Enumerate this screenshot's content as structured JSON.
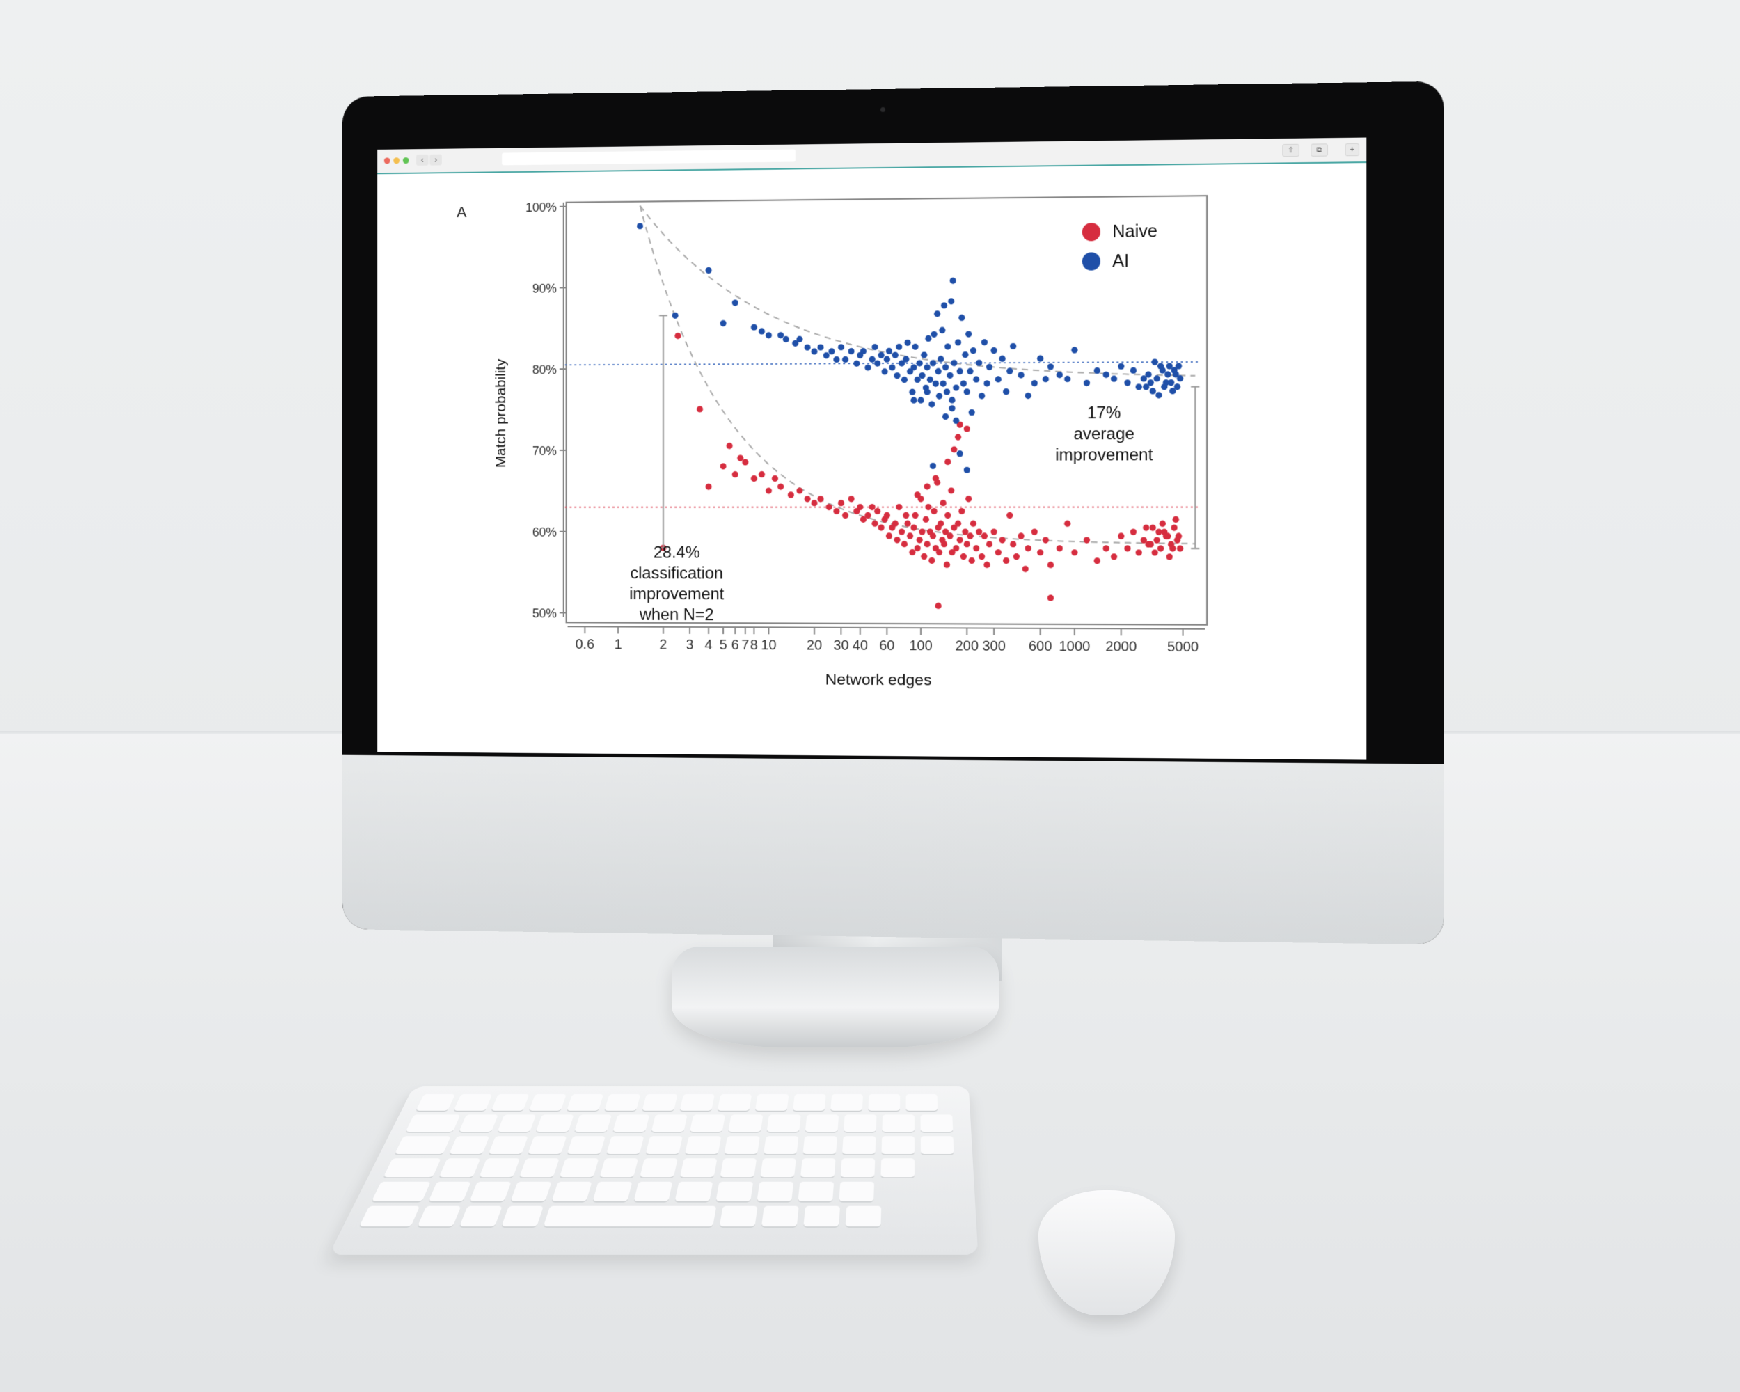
{
  "browser": {
    "back_icon": "chevron-left-icon",
    "forward_icon": "chevron-right-icon",
    "share_icon": "share-icon",
    "tabs_icon": "tabs-icon",
    "new_tab_icon": "plus-icon",
    "traffic_colors": [
      "#ec6a5e",
      "#f4bf4f",
      "#61c454"
    ]
  },
  "panel_label": "A",
  "legend": {
    "items": [
      {
        "label": "Naive",
        "color": "#d62d3f"
      },
      {
        "label": "AI",
        "color": "#1f4fa8"
      }
    ]
  },
  "annotations": {
    "left": [
      "28.4%",
      "classification",
      "improvement",
      "when N=2"
    ],
    "right": [
      "17%",
      "average",
      "improvement"
    ]
  },
  "chart_data": {
    "type": "scatter",
    "title": "",
    "xlabel": "Network edges",
    "ylabel": "Match probability",
    "x_scale": "log",
    "xlim": [
      0.5,
      6500
    ],
    "ylim": [
      50,
      100
    ],
    "x_ticks": [
      0.6,
      1,
      2,
      3,
      4,
      5,
      6,
      7,
      8,
      10,
      20,
      30,
      40,
      60,
      100,
      200,
      300,
      600,
      1000,
      2000,
      5000
    ],
    "x_tick_labels": [
      "0.6",
      "1",
      "2",
      "3",
      "4",
      "5",
      "6",
      "7",
      "8",
      "10",
      "20",
      "30",
      "40",
      "60",
      "100",
      "200",
      "300",
      "600",
      "1000",
      "2000",
      "5000"
    ],
    "y_ticks": [
      50,
      60,
      70,
      80,
      90,
      100
    ],
    "y_tick_labels": [
      "50%",
      "60%",
      "70%",
      "80%",
      "90%",
      "100%"
    ],
    "grid": false,
    "legend_position": "top-right",
    "series": [
      {
        "name": "Naive",
        "color": "#d62d3f",
        "points": [
          [
            2,
            58
          ],
          [
            2.5,
            84
          ],
          [
            3.5,
            75
          ],
          [
            4,
            65.5
          ],
          [
            5,
            68
          ],
          [
            5.5,
            70.5
          ],
          [
            6,
            67
          ],
          [
            6.5,
            69
          ],
          [
            7,
            68.5
          ],
          [
            8,
            66.5
          ],
          [
            9,
            67
          ],
          [
            10,
            65
          ],
          [
            11,
            66.5
          ],
          [
            12,
            65.5
          ],
          [
            14,
            64.5
          ],
          [
            16,
            65
          ],
          [
            18,
            64
          ],
          [
            20,
            63.5
          ],
          [
            22,
            64
          ],
          [
            25,
            63
          ],
          [
            28,
            62.5
          ],
          [
            30,
            63.5
          ],
          [
            32,
            62
          ],
          [
            35,
            64
          ],
          [
            38,
            62.5
          ],
          [
            40,
            63
          ],
          [
            42,
            61.5
          ],
          [
            45,
            62
          ],
          [
            48,
            63
          ],
          [
            50,
            61
          ],
          [
            52,
            62.5
          ],
          [
            55,
            60.5
          ],
          [
            58,
            61.5
          ],
          [
            60,
            62
          ],
          [
            62,
            59.5
          ],
          [
            65,
            60.5
          ],
          [
            68,
            61
          ],
          [
            70,
            59
          ],
          [
            72,
            63
          ],
          [
            75,
            60
          ],
          [
            78,
            58.5
          ],
          [
            80,
            62
          ],
          [
            82,
            61
          ],
          [
            85,
            59.5
          ],
          [
            88,
            57.5
          ],
          [
            90,
            60.5
          ],
          [
            92,
            62
          ],
          [
            95,
            58
          ],
          [
            98,
            59
          ],
          [
            100,
            64
          ],
          [
            102,
            60
          ],
          [
            105,
            57
          ],
          [
            108,
            61.5
          ],
          [
            110,
            58.5
          ],
          [
            112,
            63
          ],
          [
            115,
            60
          ],
          [
            118,
            56.5
          ],
          [
            120,
            59.5
          ],
          [
            122,
            62.5
          ],
          [
            125,
            58
          ],
          [
            128,
            66
          ],
          [
            130,
            60.5
          ],
          [
            132,
            57.5
          ],
          [
            135,
            61
          ],
          [
            138,
            59
          ],
          [
            140,
            63.5
          ],
          [
            142,
            58.5
          ],
          [
            145,
            60
          ],
          [
            148,
            56
          ],
          [
            150,
            62
          ],
          [
            155,
            59.5
          ],
          [
            158,
            65
          ],
          [
            160,
            57.5
          ],
          [
            165,
            60.5
          ],
          [
            170,
            58
          ],
          [
            175,
            61
          ],
          [
            180,
            59
          ],
          [
            185,
            62.5
          ],
          [
            190,
            57
          ],
          [
            195,
            60
          ],
          [
            200,
            58.5
          ],
          [
            205,
            64
          ],
          [
            210,
            59.5
          ],
          [
            215,
            56.5
          ],
          [
            220,
            61
          ],
          [
            230,
            58
          ],
          [
            240,
            60
          ],
          [
            250,
            57
          ],
          [
            260,
            59.5
          ],
          [
            270,
            56
          ],
          [
            280,
            58.5
          ],
          [
            300,
            60
          ],
          [
            320,
            57.5
          ],
          [
            340,
            59
          ],
          [
            360,
            56.5
          ],
          [
            380,
            62
          ],
          [
            400,
            58.5
          ],
          [
            420,
            57
          ],
          [
            450,
            59.5
          ],
          [
            480,
            55.5
          ],
          [
            500,
            58
          ],
          [
            550,
            60
          ],
          [
            600,
            57.5
          ],
          [
            650,
            59
          ],
          [
            700,
            56
          ],
          [
            800,
            58
          ],
          [
            900,
            61
          ],
          [
            1000,
            57.5
          ],
          [
            1200,
            59
          ],
          [
            1400,
            56.5
          ],
          [
            1600,
            58
          ],
          [
            1800,
            57
          ],
          [
            2000,
            59.5
          ],
          [
            2200,
            58
          ],
          [
            2400,
            60
          ],
          [
            2600,
            57.5
          ],
          [
            2800,
            59
          ],
          [
            3000,
            58.5
          ],
          [
            3200,
            60.5
          ],
          [
            3400,
            59
          ],
          [
            3600,
            58
          ],
          [
            3800,
            60
          ],
          [
            4000,
            59.5
          ],
          [
            4200,
            58.5
          ],
          [
            4400,
            60.5
          ],
          [
            4600,
            59
          ],
          [
            4800,
            58
          ],
          [
            3300,
            57.5
          ],
          [
            3700,
            61
          ],
          [
            4100,
            57
          ],
          [
            4500,
            61.5
          ],
          [
            3100,
            58.5
          ],
          [
            3500,
            60
          ],
          [
            3900,
            59.5
          ],
          [
            4300,
            58
          ],
          [
            2900,
            60.5
          ],
          [
            4700,
            59.5
          ],
          [
            130,
            51
          ],
          [
            700,
            52
          ],
          [
            150,
            68.5
          ],
          [
            165,
            70
          ],
          [
            175,
            71.5
          ],
          [
            180,
            73
          ],
          [
            200,
            72.5
          ],
          [
            110,
            65.5
          ],
          [
            95,
            64.5
          ],
          [
            125,
            66.5
          ]
        ]
      },
      {
        "name": "AI",
        "color": "#1f4fa8",
        "points": [
          [
            1.4,
            97.5
          ],
          [
            2.4,
            86.5
          ],
          [
            4,
            92
          ],
          [
            6,
            88
          ],
          [
            5,
            85.5
          ],
          [
            8,
            85
          ],
          [
            9,
            84.5
          ],
          [
            10,
            84
          ],
          [
            12,
            84
          ],
          [
            13,
            83.5
          ],
          [
            15,
            83
          ],
          [
            16,
            83.5
          ],
          [
            18,
            82.5
          ],
          [
            20,
            82
          ],
          [
            22,
            82.5
          ],
          [
            24,
            81.5
          ],
          [
            26,
            82
          ],
          [
            28,
            81
          ],
          [
            30,
            82.5
          ],
          [
            32,
            81
          ],
          [
            35,
            82
          ],
          [
            38,
            80.5
          ],
          [
            40,
            81.5
          ],
          [
            42,
            82
          ],
          [
            45,
            80
          ],
          [
            48,
            81
          ],
          [
            50,
            82.5
          ],
          [
            52,
            80.5
          ],
          [
            55,
            81.5
          ],
          [
            58,
            79.5
          ],
          [
            60,
            81
          ],
          [
            62,
            82
          ],
          [
            65,
            80
          ],
          [
            68,
            81.5
          ],
          [
            70,
            79
          ],
          [
            72,
            82.5
          ],
          [
            75,
            80.5
          ],
          [
            78,
            78.5
          ],
          [
            80,
            81
          ],
          [
            82,
            83
          ],
          [
            85,
            79.5
          ],
          [
            88,
            77
          ],
          [
            90,
            80
          ],
          [
            92,
            82.5
          ],
          [
            95,
            78.5
          ],
          [
            98,
            80.5
          ],
          [
            100,
            76
          ],
          [
            102,
            79
          ],
          [
            105,
            81.5
          ],
          [
            108,
            77.5
          ],
          [
            110,
            80
          ],
          [
            112,
            83.5
          ],
          [
            115,
            78.5
          ],
          [
            118,
            75.5
          ],
          [
            120,
            80.5
          ],
          [
            122,
            84
          ],
          [
            125,
            78
          ],
          [
            128,
            86.5
          ],
          [
            130,
            79.5
          ],
          [
            132,
            76.5
          ],
          [
            135,
            81
          ],
          [
            138,
            84.5
          ],
          [
            140,
            78
          ],
          [
            142,
            87.5
          ],
          [
            145,
            80
          ],
          [
            148,
            77
          ],
          [
            150,
            82.5
          ],
          [
            155,
            79
          ],
          [
            158,
            88
          ],
          [
            160,
            76
          ],
          [
            162,
            90.5
          ],
          [
            165,
            80.5
          ],
          [
            170,
            77.5
          ],
          [
            175,
            83
          ],
          [
            180,
            79.5
          ],
          [
            185,
            86
          ],
          [
            190,
            78
          ],
          [
            195,
            81.5
          ],
          [
            200,
            77
          ],
          [
            205,
            84
          ],
          [
            210,
            79.5
          ],
          [
            215,
            74.5
          ],
          [
            220,
            82
          ],
          [
            230,
            78.5
          ],
          [
            240,
            80.5
          ],
          [
            250,
            76.5
          ],
          [
            260,
            83
          ],
          [
            270,
            78
          ],
          [
            280,
            80
          ],
          [
            300,
            82
          ],
          [
            320,
            78.5
          ],
          [
            340,
            81
          ],
          [
            360,
            77
          ],
          [
            380,
            79.5
          ],
          [
            400,
            82.5
          ],
          [
            450,
            79
          ],
          [
            500,
            76.5
          ],
          [
            550,
            78
          ],
          [
            600,
            81
          ],
          [
            650,
            78.5
          ],
          [
            700,
            80
          ],
          [
            800,
            79
          ],
          [
            900,
            78.5
          ],
          [
            1000,
            82
          ],
          [
            1200,
            78
          ],
          [
            1400,
            79.5
          ],
          [
            1600,
            79
          ],
          [
            1800,
            78.5
          ],
          [
            2000,
            80
          ],
          [
            2200,
            78
          ],
          [
            2400,
            79.5
          ],
          [
            2600,
            77.5
          ],
          [
            2800,
            78.5
          ],
          [
            3000,
            79
          ],
          [
            3200,
            77
          ],
          [
            3400,
            78.5
          ],
          [
            3600,
            80
          ],
          [
            3800,
            77.5
          ],
          [
            4000,
            79
          ],
          [
            4200,
            78
          ],
          [
            4400,
            79.5
          ],
          [
            4600,
            77.5
          ],
          [
            4800,
            78.5
          ],
          [
            3100,
            78
          ],
          [
            3300,
            80.5
          ],
          [
            3500,
            76.5
          ],
          [
            3700,
            79.5
          ],
          [
            3900,
            78
          ],
          [
            4100,
            80
          ],
          [
            4300,
            77
          ],
          [
            4500,
            79
          ],
          [
            2900,
            77.5
          ],
          [
            4700,
            80
          ],
          [
            120,
            68
          ],
          [
            180,
            69.5
          ],
          [
            200,
            67.5
          ],
          [
            170,
            73.5
          ],
          [
            160,
            75
          ],
          [
            145,
            74
          ],
          [
            110,
            77
          ],
          [
            90,
            76
          ]
        ]
      }
    ],
    "reference_lines": [
      {
        "series": "AI",
        "y": 80.5,
        "style": "dotted",
        "color": "#4f78c4"
      },
      {
        "series": "Naive",
        "y": 63,
        "style": "dotted",
        "color": "#e05565"
      }
    ],
    "fit_curves": [
      {
        "series": "AI",
        "style": "dashed",
        "color": "#aaaaaa"
      },
      {
        "series": "Naive",
        "style": "dashed",
        "color": "#aaaaaa"
      }
    ],
    "improvement_brackets": [
      {
        "x": 2,
        "y_from": 58,
        "y_to": 86.5
      },
      {
        "x": 6000,
        "y_from": 58,
        "y_to": 77.5
      }
    ]
  }
}
